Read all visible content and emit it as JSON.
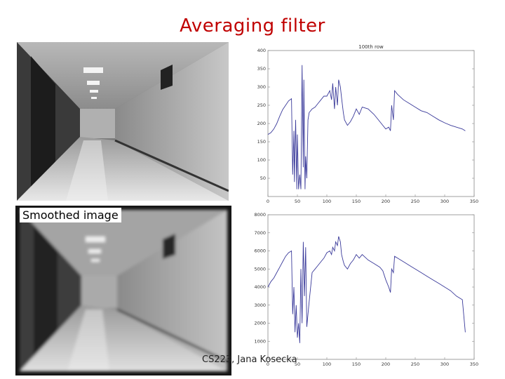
{
  "slide": {
    "title": "Averaging filter",
    "caption": "Smoothed image",
    "footer": "CS223, Jana Kosecka"
  },
  "images": [
    {
      "name": "hallway-photo-original",
      "content": "grayscale photograph of an office hallway"
    },
    {
      "name": "hallway-photo-smoothed",
      "content": "blurred grayscale photograph of the same hallway"
    }
  ],
  "chart_data": [
    {
      "type": "line",
      "title": "100th row",
      "xlabel": "",
      "ylabel": "",
      "xlim": [
        0,
        350
      ],
      "ylim": [
        0,
        400
      ],
      "xticks": [
        0,
        50,
        100,
        150,
        200,
        250,
        300,
        350
      ],
      "yticks": [
        50,
        100,
        150,
        200,
        250,
        300,
        350,
        400
      ],
      "series_color": "#3a3a9a",
      "x": [
        0,
        5,
        10,
        15,
        20,
        25,
        30,
        35,
        40,
        42,
        44,
        45,
        47,
        49,
        50,
        52,
        54,
        56,
        58,
        60,
        61,
        63,
        64,
        66,
        68,
        70,
        75,
        80,
        85,
        90,
        95,
        100,
        105,
        108,
        110,
        113,
        115,
        118,
        120,
        123,
        125,
        128,
        130,
        135,
        140,
        145,
        150,
        155,
        160,
        170,
        180,
        190,
        195,
        200,
        205,
        208,
        210,
        213,
        215,
        220,
        230,
        240,
        250,
        260,
        270,
        280,
        290,
        300,
        310,
        320,
        330,
        335
      ],
      "values": [
        170,
        175,
        185,
        200,
        220,
        238,
        250,
        262,
        268,
        60,
        180,
        40,
        210,
        20,
        170,
        20,
        60,
        20,
        360,
        80,
        320,
        20,
        110,
        50,
        210,
        230,
        240,
        245,
        255,
        265,
        275,
        275,
        290,
        265,
        310,
        240,
        300,
        250,
        320,
        300,
        270,
        230,
        210,
        195,
        205,
        220,
        240,
        225,
        245,
        240,
        225,
        205,
        195,
        185,
        190,
        180,
        250,
        210,
        290,
        280,
        265,
        255,
        245,
        235,
        230,
        220,
        210,
        202,
        195,
        190,
        185,
        180
      ]
    },
    {
      "type": "line",
      "title": "",
      "xlabel": "",
      "ylabel": "",
      "xlim": [
        0,
        350
      ],
      "ylim": [
        0,
        8000
      ],
      "xticks": [
        0,
        50,
        100,
        150,
        200,
        250,
        300,
        350
      ],
      "yticks": [
        1000,
        2000,
        3000,
        4000,
        5000,
        6000,
        7000,
        8000
      ],
      "series_color": "#3a3a9a",
      "x": [
        0,
        5,
        10,
        15,
        20,
        25,
        30,
        35,
        40,
        42,
        44,
        46,
        48,
        50,
        52,
        54,
        56,
        58,
        60,
        62,
        64,
        66,
        68,
        70,
        75,
        80,
        85,
        90,
        95,
        100,
        105,
        108,
        110,
        113,
        115,
        118,
        120,
        123,
        125,
        128,
        130,
        135,
        140,
        145,
        150,
        155,
        160,
        170,
        180,
        190,
        195,
        200,
        205,
        208,
        210,
        213,
        215,
        220,
        230,
        240,
        250,
        260,
        270,
        280,
        290,
        300,
        310,
        320,
        330,
        335
      ],
      "values": [
        4000,
        4300,
        4500,
        4800,
        5100,
        5400,
        5700,
        5900,
        6000,
        2500,
        4000,
        1500,
        3000,
        1200,
        2000,
        900,
        5000,
        2000,
        6500,
        3500,
        6200,
        1800,
        2500,
        3200,
        4800,
        5000,
        5200,
        5400,
        5600,
        5900,
        6000,
        5800,
        6200,
        6000,
        6500,
        6300,
        6800,
        6500,
        5800,
        5400,
        5200,
        5000,
        5300,
        5500,
        5800,
        5600,
        5800,
        5500,
        5300,
        5100,
        4900,
        4400,
        4000,
        3700,
        5000,
        4800,
        5700,
        5600,
        5400,
        5200,
        5000,
        4800,
        4600,
        4400,
        4200,
        4000,
        3800,
        3500,
        3300,
        1500
      ]
    }
  ]
}
